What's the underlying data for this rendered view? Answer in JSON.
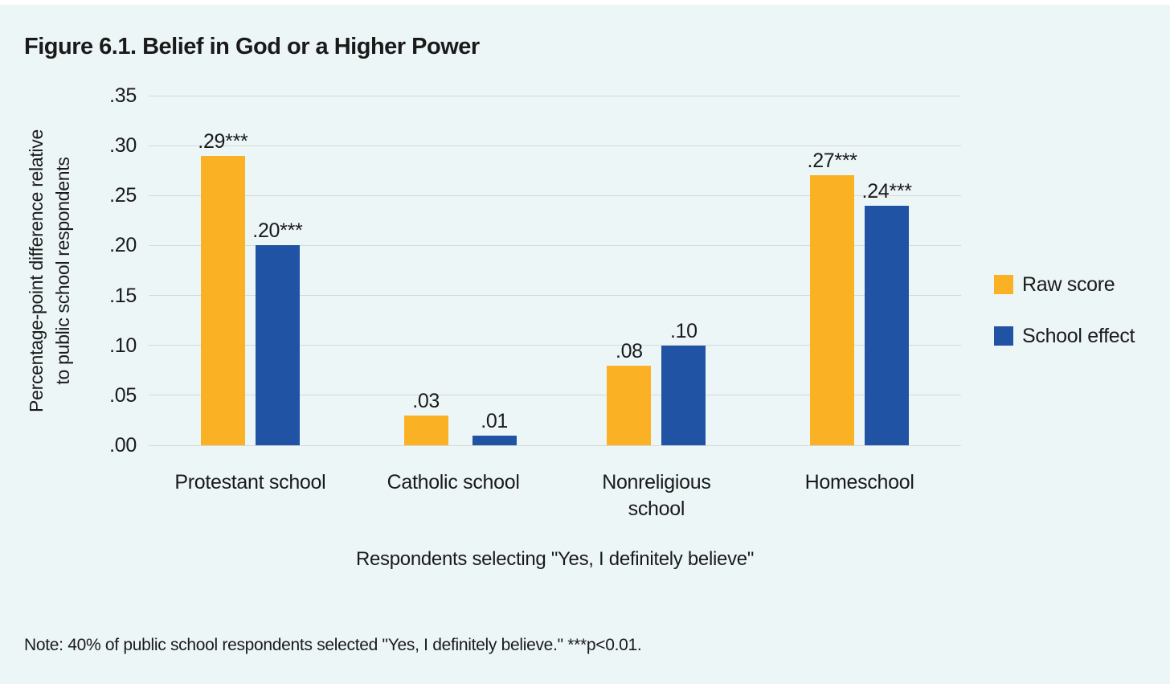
{
  "colors": {
    "background": "#EDF6F7",
    "gridline": "#D6D8D9",
    "text": "#1A1A1A",
    "raw_score": "#FBB124",
    "school_effect": "#2053A4"
  },
  "chart_data": {
    "type": "bar",
    "title": "Figure 6.1. Belief in God or a Higher Power",
    "categories": [
      "Protestant school",
      "Catholic school",
      "Nonreligious school",
      "Homeschool"
    ],
    "category_labels": [
      "Protestant school",
      "Catholic school",
      "Nonreligious\nschool",
      "Homeschool"
    ],
    "series": [
      {
        "name": "Raw score",
        "color": "#FBB124",
        "values": [
          0.29,
          0.03,
          0.08,
          0.27
        ],
        "value_labels": [
          ".29***",
          ".03",
          ".08",
          ".27***"
        ]
      },
      {
        "name": "School effect",
        "color": "#2053A4",
        "values": [
          0.2,
          0.01,
          0.1,
          0.24
        ],
        "value_labels": [
          ".20***",
          ".01",
          ".10",
          ".24***"
        ]
      }
    ],
    "xlabel": "Respondents selecting \"Yes, I definitely believe\"",
    "ylabel": "Percentage-point difference relative to public school respondents",
    "ylabel_lines": [
      "Percentage-point difference relative",
      "to public school respondents"
    ],
    "yticks": [
      ".00",
      ".05",
      ".10",
      ".15",
      ".20",
      ".25",
      ".30",
      ".35"
    ],
    "ytick_values": [
      0,
      0.05,
      0.1,
      0.15,
      0.2,
      0.25,
      0.3,
      0.35
    ],
    "ylim": [
      0,
      0.35
    ],
    "grid": true,
    "legend_position": "right",
    "note": "Note: 40% of public school respondents selected \"Yes, I definitely believe.\" ***p<0.01."
  }
}
